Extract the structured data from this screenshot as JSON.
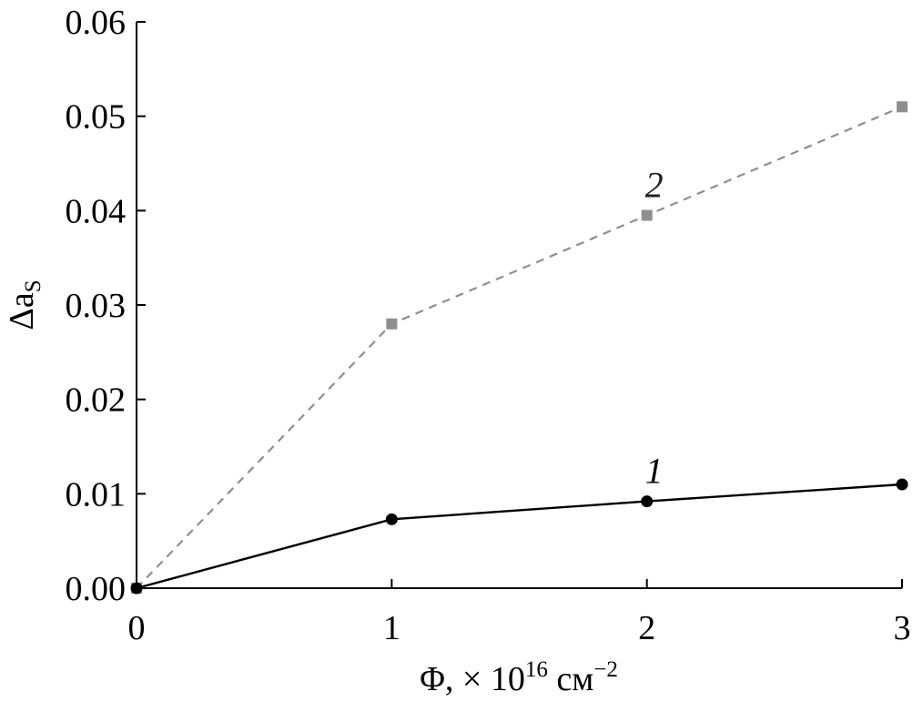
{
  "chart_data": {
    "type": "line",
    "x": [
      0,
      1,
      2,
      3
    ],
    "series": [
      {
        "name": "1",
        "values": [
          0.0,
          0.0073,
          0.0092,
          0.011
        ],
        "color": "#000000",
        "marker": "circle",
        "line_style": "solid"
      },
      {
        "name": "2",
        "values": [
          0.0,
          0.028,
          0.0395,
          0.051
        ],
        "color": "#8f8f8f",
        "marker": "square",
        "line_style": "dashed"
      }
    ],
    "xlim": [
      0,
      3
    ],
    "ylim": [
      0,
      0.06
    ],
    "x_ticks": [
      "0",
      "1",
      "2",
      "3"
    ],
    "y_ticks": [
      "0.00",
      "0.01",
      "0.02",
      "0.03",
      "0.04",
      "0.05",
      "0.06"
    ],
    "xlabel": {
      "symbol": "Φ, × 10",
      "exponent": "16",
      "unit": " см",
      "unit_exponent": "−2"
    },
    "ylabel": {
      "symbol": "Δa",
      "subscript": "S"
    },
    "grid": false,
    "legend": "inline-labels"
  }
}
